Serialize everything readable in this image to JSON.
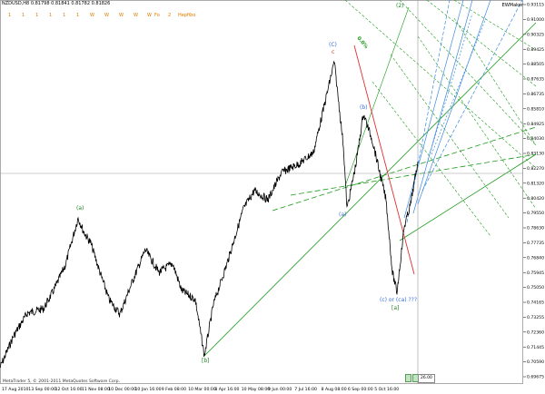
{
  "header": {
    "symbol_info": "NZDUSD,H8  0.81798 0.81841 0.81782 0.81826",
    "indicator_name": "EWMaker"
  },
  "timeframes": [
    "1",
    "1",
    "1",
    "1",
    "1",
    "1",
    "W",
    "W",
    "W",
    "W",
    "W",
    "Fo",
    "2",
    "Hepfibo"
  ],
  "footer": {
    "copyright": "MetaTrader 5, © 2001-2011 MetaQuotes Software Corp.",
    "price_box": "26.00"
  },
  "price_axis_labels": [
    "0.93115",
    "0.91000",
    "0.90325",
    "0.89425",
    "0.88505",
    "0.87635",
    "0.86735",
    "0.85810",
    "0.84925",
    "0.84030",
    "0.83130",
    "0.82270",
    "0.81320",
    "0.80420",
    "0.79550",
    "0.78630",
    "0.77735",
    "0.76840",
    "0.75945",
    "0.75050",
    "0.74165",
    "0.73255",
    "0.72360",
    "0.71445",
    "0.70590",
    "0.69675"
  ],
  "time_axis_labels": [
    "17 Aug 2010",
    "13 Sep 00:00",
    "12 Oct 16:00",
    "11 Nov 08:00",
    "10 Dec 00:00",
    "10 Jan 16:00",
    "9 Feb 08:00",
    "10 Mar 00:00",
    "8 Apr 16:00",
    "10 May 08:00",
    "9 Jun 00:00",
    "7 Jul 16:00",
    "8 Aug 08:00",
    "6 Sep 00:00",
    "5 Oct 16:00"
  ],
  "wave_labels": {
    "a_left": "(a)",
    "b_bottom": "[b]",
    "C_top": "(C)",
    "c_top": "c",
    "b_mid": "(b)",
    "a_mid": "(a)",
    "bottom_label": "(c) or (ca) ???",
    "a_bottom": "[a]",
    "top_right": "(2)",
    "channel_label": "0.0%"
  },
  "colors": {
    "price": "#000000",
    "green_channel": "#1a9a1a",
    "red_line": "#e03030",
    "blue_channel": "#3a8ae0",
    "wave_green": "#1f7f1f",
    "wave_blue": "#3a6ae0",
    "grid": "#999999"
  }
}
